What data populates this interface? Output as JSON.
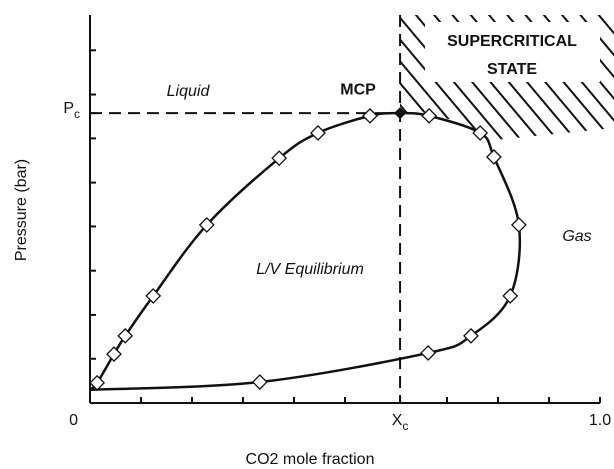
{
  "chart_data": {
    "type": "phase-diagram",
    "xlabel": "CO2 mole fraction",
    "ylabel": "Pressure (bar)",
    "xlim": [
      0,
      1
    ],
    "ylim": [
      0,
      1
    ],
    "xticks": [
      0,
      {
        "value": 1,
        "label": "1.0"
      },
      {
        "value": 0.608,
        "label": "X",
        "sub": "c"
      }
    ],
    "yticks": [
      {
        "value": 0.747,
        "label": "P",
        "sub": "c"
      }
    ],
    "xminor": [
      0.1,
      0.2,
      0.3,
      0.4,
      0.5,
      0.7,
      0.8,
      0.9
    ],
    "yminor": [
      0.114,
      0.227,
      0.341,
      0.455,
      0.568,
      0.682,
      0.795,
      0.909
    ],
    "critical_point": {
      "label": "MCP",
      "x": 0.608,
      "y": 0.747
    },
    "annotations": {
      "liquid": "Liquid",
      "gas": "Gas",
      "equilibrium": "L/V Equilibrium",
      "supercritical": [
        "SUPERCRITICAL",
        "STATE"
      ]
    },
    "curve": {
      "x": [
        0,
        0.014,
        0.047,
        0.069,
        0.124,
        0.229,
        0.371,
        0.447,
        0.549,
        0.608,
        0.665,
        0.765,
        0.792,
        0.841,
        0.824,
        0.747,
        0.663,
        0.333,
        0
      ],
      "y": [
        0.034,
        0.052,
        0.126,
        0.173,
        0.276,
        0.459,
        0.631,
        0.696,
        0.74,
        0.747,
        0.74,
        0.696,
        0.634,
        0.459,
        0.276,
        0.173,
        0.129,
        0.054,
        0.034
      ]
    },
    "points": {
      "x": [
        0.014,
        0.047,
        0.069,
        0.124,
        0.229,
        0.371,
        0.447,
        0.549,
        0.665,
        0.765,
        0.792,
        0.841,
        0.824,
        0.747,
        0.663,
        0.333
      ],
      "y": [
        0.052,
        0.126,
        0.173,
        0.276,
        0.459,
        0.631,
        0.696,
        0.74,
        0.74,
        0.696,
        0.634,
        0.459,
        0.276,
        0.173,
        0.129,
        0.054
      ]
    }
  }
}
